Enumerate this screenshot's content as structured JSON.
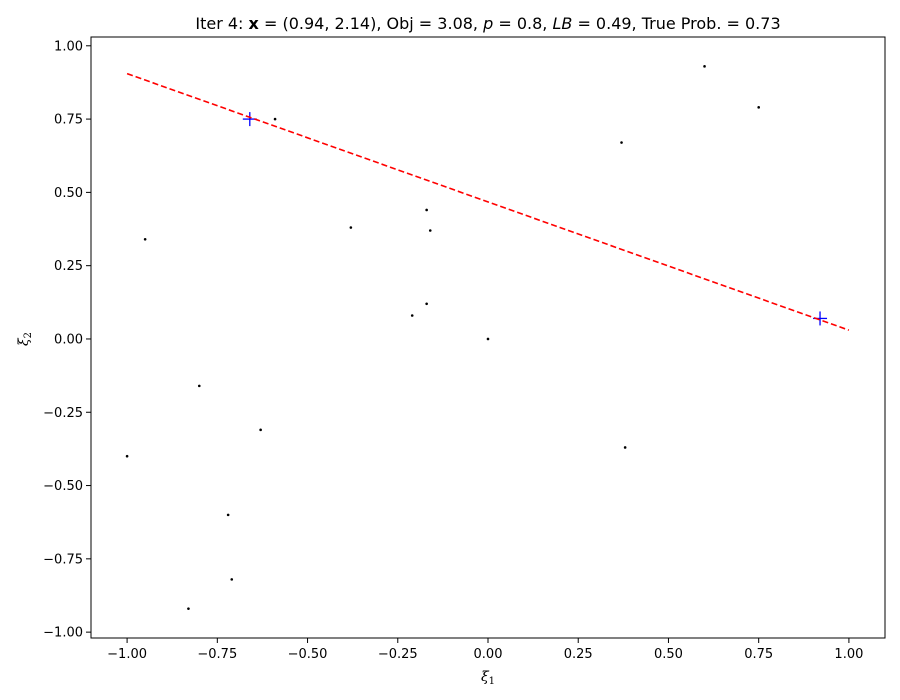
{
  "chart_data": {
    "type": "scatter",
    "title": {
      "prefix": "Iter 4: ",
      "bold_var": "x",
      "middle": " = (0.94, 2.14), Obj = 3.08, ",
      "p_var": "p",
      "p_value": " = 0.8, ",
      "lb_var": "LB",
      "rest": " = 0.49, True Prob. = 0.73"
    },
    "xlabel": {
      "symbol": "ξ",
      "subscript": "1"
    },
    "ylabel": {
      "symbol": "ξ",
      "subscript": "2"
    },
    "xlim": [
      -1.1,
      1.1
    ],
    "ylim": [
      -1.02,
      1.03
    ],
    "xticks": [
      -1.0,
      -0.75,
      -0.5,
      -0.25,
      0.0,
      0.25,
      0.5,
      0.75,
      1.0
    ],
    "xtick_labels": [
      "−1.00",
      "−0.75",
      "−0.50",
      "−0.25",
      "0.00",
      "0.25",
      "0.50",
      "0.75",
      "1.00"
    ],
    "yticks": [
      -1.0,
      -0.75,
      -0.5,
      -0.25,
      0.0,
      0.25,
      0.5,
      0.75,
      1.0
    ],
    "ytick_labels": [
      "−1.00",
      "−0.75",
      "−0.50",
      "−0.25",
      "0.00",
      "0.25",
      "0.50",
      "0.75",
      "1.00"
    ],
    "grid": false,
    "series": [
      {
        "kind": "points",
        "color": "#000000",
        "marker": "dot",
        "x": [
          0.6,
          0.75,
          0.37,
          -0.59,
          -0.17,
          -0.38,
          -0.16,
          -0.95,
          -0.17,
          -0.21,
          0.0,
          -0.8,
          -0.63,
          -1.0,
          0.38,
          -0.72,
          -0.71,
          -0.83
        ],
        "y": [
          0.93,
          0.79,
          0.67,
          0.75,
          0.44,
          0.38,
          0.37,
          0.34,
          0.12,
          0.08,
          0.0,
          -0.16,
          -0.31,
          -0.4,
          -0.37,
          -0.6,
          -0.82,
          -0.92
        ]
      },
      {
        "kind": "points",
        "color": "#0000ff",
        "marker": "plus",
        "x": [
          -0.66,
          0.92
        ],
        "y": [
          0.75,
          0.07
        ]
      },
      {
        "kind": "line",
        "color": "#ff0000",
        "style": "dashed",
        "x": [
          -1.0,
          1.0
        ],
        "y": [
          0.905,
          0.03
        ]
      }
    ]
  }
}
